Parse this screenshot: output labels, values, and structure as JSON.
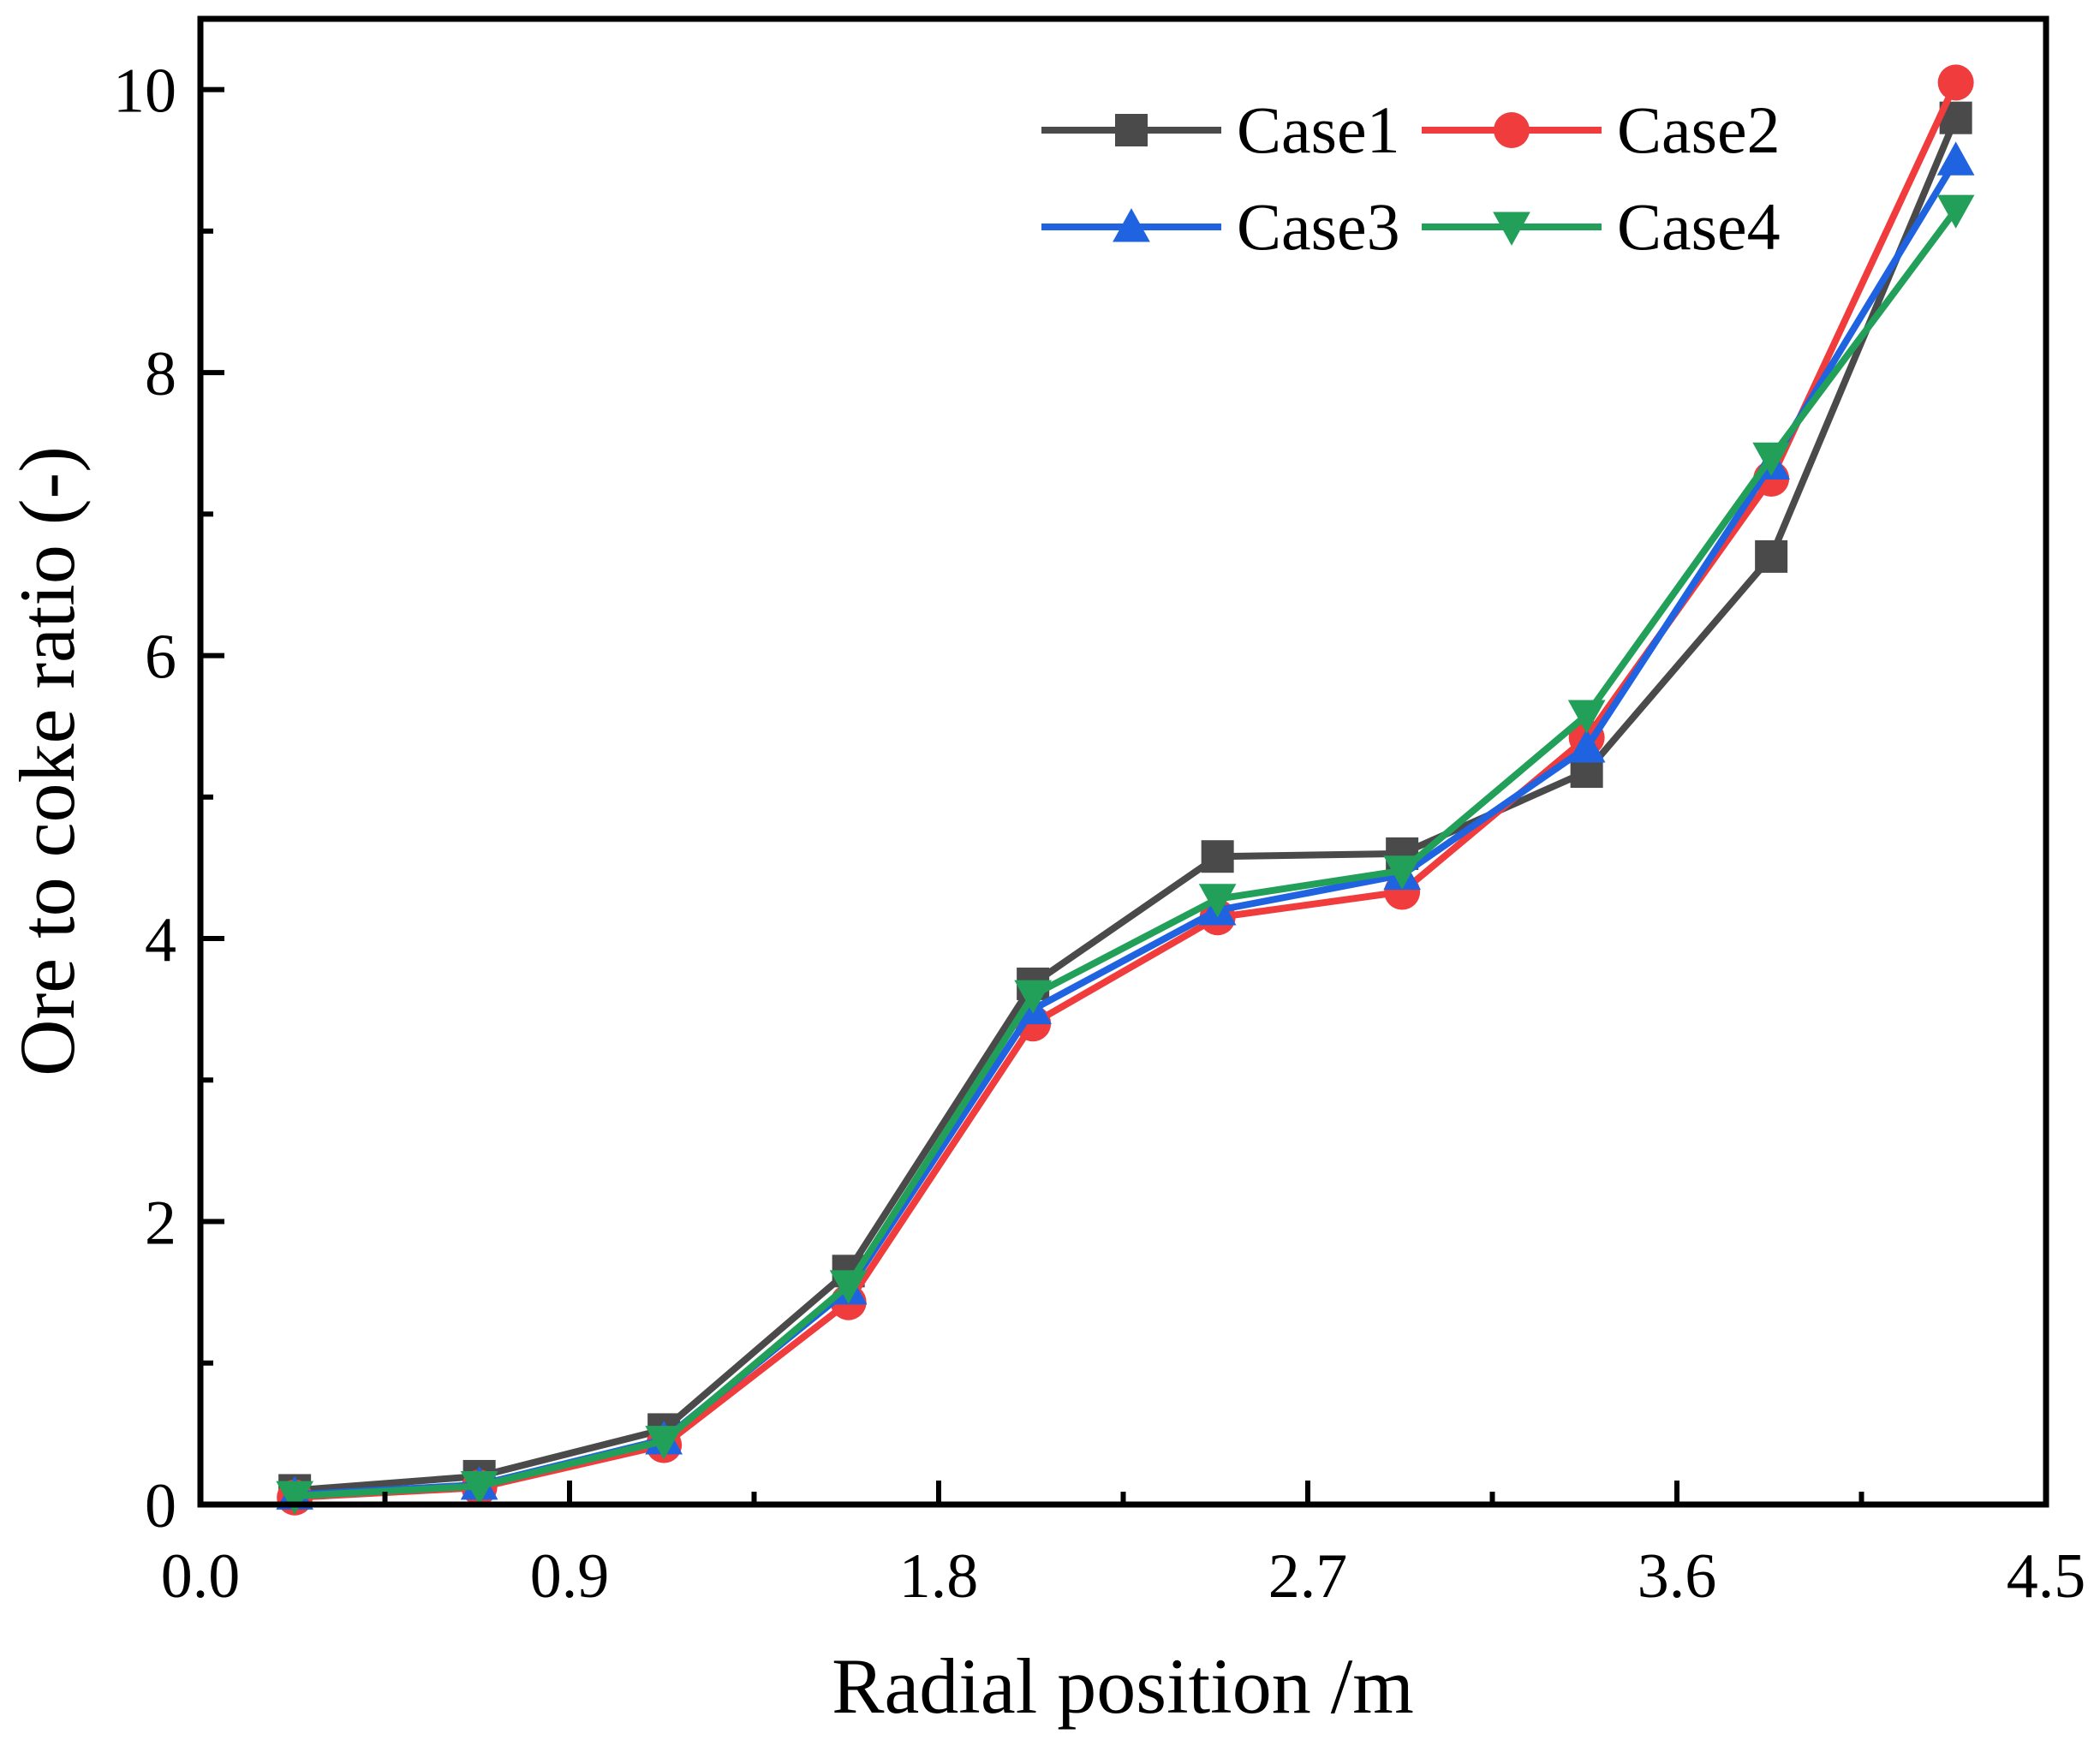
{
  "chart_data": {
    "type": "line",
    "title": "",
    "xlabel": "Radial position /m",
    "ylabel": "Ore to coke ratio (-)",
    "xlim": [
      0.0,
      4.5
    ],
    "ylim": [
      0,
      10.5
    ],
    "x_ticks": [
      0.0,
      0.9,
      1.8,
      2.7,
      3.6,
      4.5
    ],
    "x_tick_labels": [
      "0.0",
      "0.9",
      "1.8",
      "2.7",
      "3.6",
      "4.5"
    ],
    "y_ticks": [
      0,
      2,
      4,
      6,
      8,
      10
    ],
    "y_tick_labels": [
      "0",
      "2",
      "4",
      "6",
      "8",
      "10"
    ],
    "x_minor_ticks": [
      0.45,
      1.35,
      2.25,
      3.15,
      4.05
    ],
    "y_minor_ticks": [
      1,
      3,
      5,
      7,
      9
    ],
    "grid": false,
    "legend_position": "top-right",
    "x": [
      0.23,
      0.68,
      1.13,
      1.58,
      2.03,
      2.48,
      2.93,
      3.38,
      3.83,
      4.28
    ],
    "series": [
      {
        "name": "Case1",
        "color": "#4a4a4a",
        "marker": "square",
        "values": [
          0.1,
          0.2,
          0.53,
          1.65,
          3.68,
          4.58,
          4.6,
          5.18,
          6.7,
          9.8
        ]
      },
      {
        "name": "Case2",
        "color": "#f03c3c",
        "marker": "circle",
        "values": [
          0.05,
          0.12,
          0.42,
          1.43,
          3.4,
          4.15,
          4.33,
          5.42,
          7.25,
          10.05
        ]
      },
      {
        "name": "Case3",
        "color": "#1f63e0",
        "marker": "triangle-up",
        "values": [
          0.07,
          0.14,
          0.46,
          1.52,
          3.5,
          4.2,
          4.45,
          5.35,
          7.35,
          9.5
        ]
      },
      {
        "name": "Case4",
        "color": "#22a05a",
        "marker": "triangle-down",
        "values": [
          0.06,
          0.13,
          0.45,
          1.55,
          3.6,
          4.28,
          4.48,
          5.58,
          7.4,
          9.15
        ]
      }
    ]
  }
}
